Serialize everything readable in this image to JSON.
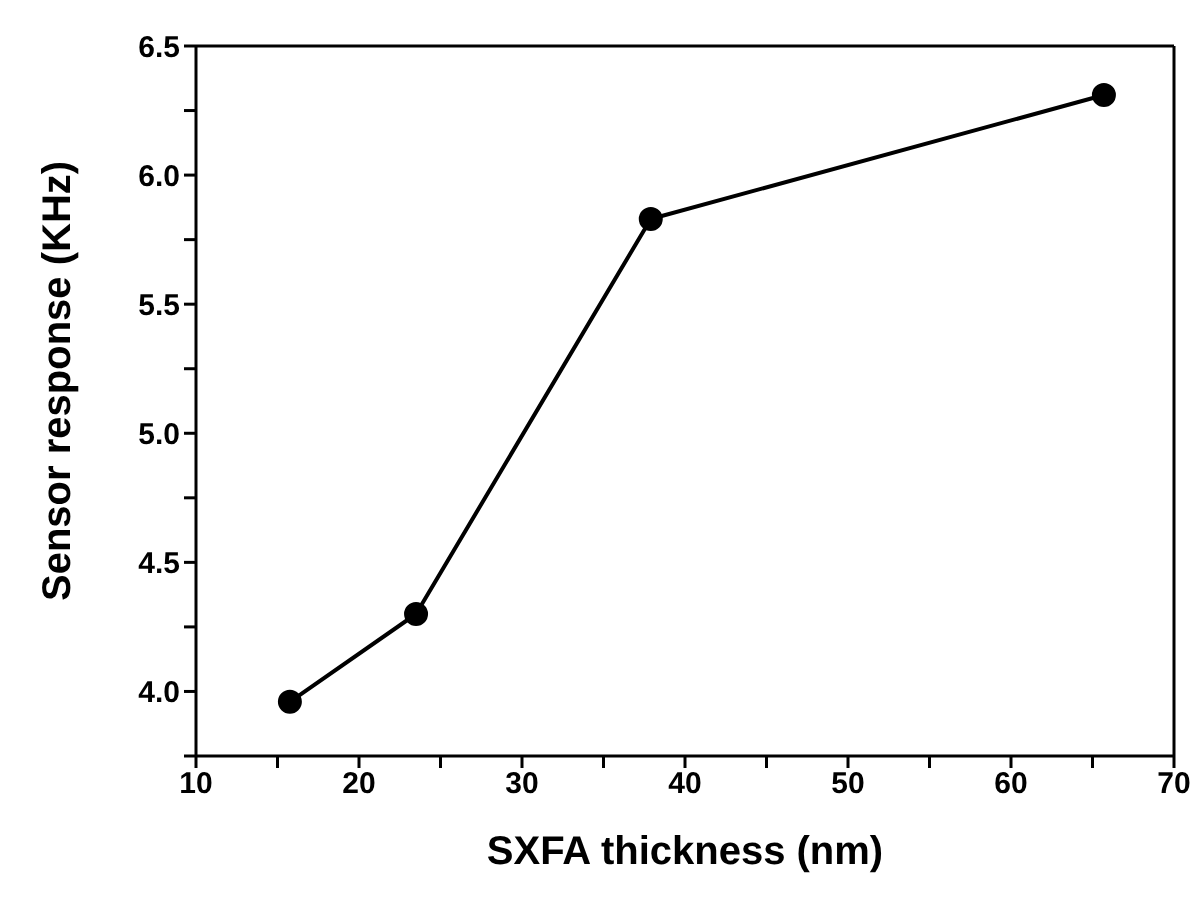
{
  "chart_data": {
    "type": "line",
    "xlabel": "SXFA thickness (nm)",
    "ylabel": "Sensor response (KHz)",
    "x": [
      15.76,
      23.5,
      37.9,
      65.7
    ],
    "series": [
      {
        "color": "#000000",
        "values": [
          3.96,
          4.3,
          5.83,
          6.31
        ]
      }
    ],
    "xlim": [
      10,
      70
    ],
    "xticks": [
      10,
      {
        "value": 15,
        "label": null
      },
      20,
      {
        "value": 25,
        "label": null
      },
      30,
      {
        "value": 35,
        "label": null
      },
      40,
      {
        "value": 45,
        "label": null
      },
      50,
      {
        "value": 55,
        "label": null
      },
      60,
      {
        "value": 65,
        "label": null
      },
      70
    ],
    "ylim": [
      3.75,
      6.5
    ],
    "yticks": [
      {
        "value": 3.75,
        "label": null
      },
      {
        "value": 4,
        "label": "4.0"
      },
      {
        "value": 4.25,
        "label": null
      },
      4.5,
      {
        "value": 4.75,
        "label": null
      },
      {
        "value": 5,
        "label": "5.0"
      },
      {
        "value": 5.25,
        "label": null
      },
      5.5,
      {
        "value": 5.75,
        "label": null
      },
      {
        "value": 6,
        "label": "6.0"
      },
      {
        "value": 6.25,
        "label": null
      },
      6.5
    ],
    "grid": false,
    "legend": false,
    "marker": "circle",
    "line_style": "solid"
  }
}
